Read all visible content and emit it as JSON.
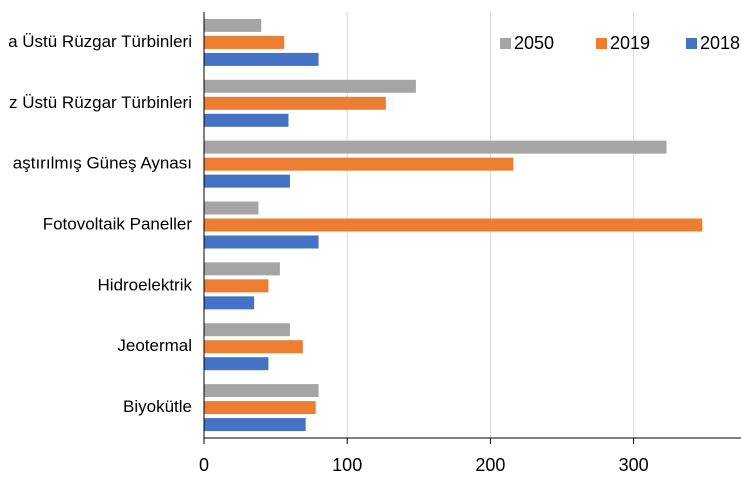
{
  "chart_data": {
    "type": "hbar",
    "categories": [
      "a Üstü Rüzgar Türbinleri",
      "z Üstü Rüzgar Türbinleri",
      "aştırılmış Güneş Aynası",
      "Fotovoltaik Paneller",
      "Hidroelektrik",
      "Jeotermal",
      "Biyokütle"
    ],
    "series": [
      {
        "name": "2050",
        "color": "#a5a5a5",
        "values": [
          40,
          148,
          323,
          38,
          53,
          60,
          80
        ]
      },
      {
        "name": "2019",
        "color": "#ed7d31",
        "values": [
          56,
          127,
          216,
          348,
          45,
          69,
          78
        ]
      },
      {
        "name": "2018",
        "color": "#4472c4",
        "values": [
          80,
          59,
          60,
          80,
          35,
          45,
          71
        ]
      }
    ],
    "xlim": [
      0,
      375
    ],
    "xticks": [
      0,
      100,
      200,
      300
    ],
    "grid": true,
    "legend": "top-right"
  }
}
